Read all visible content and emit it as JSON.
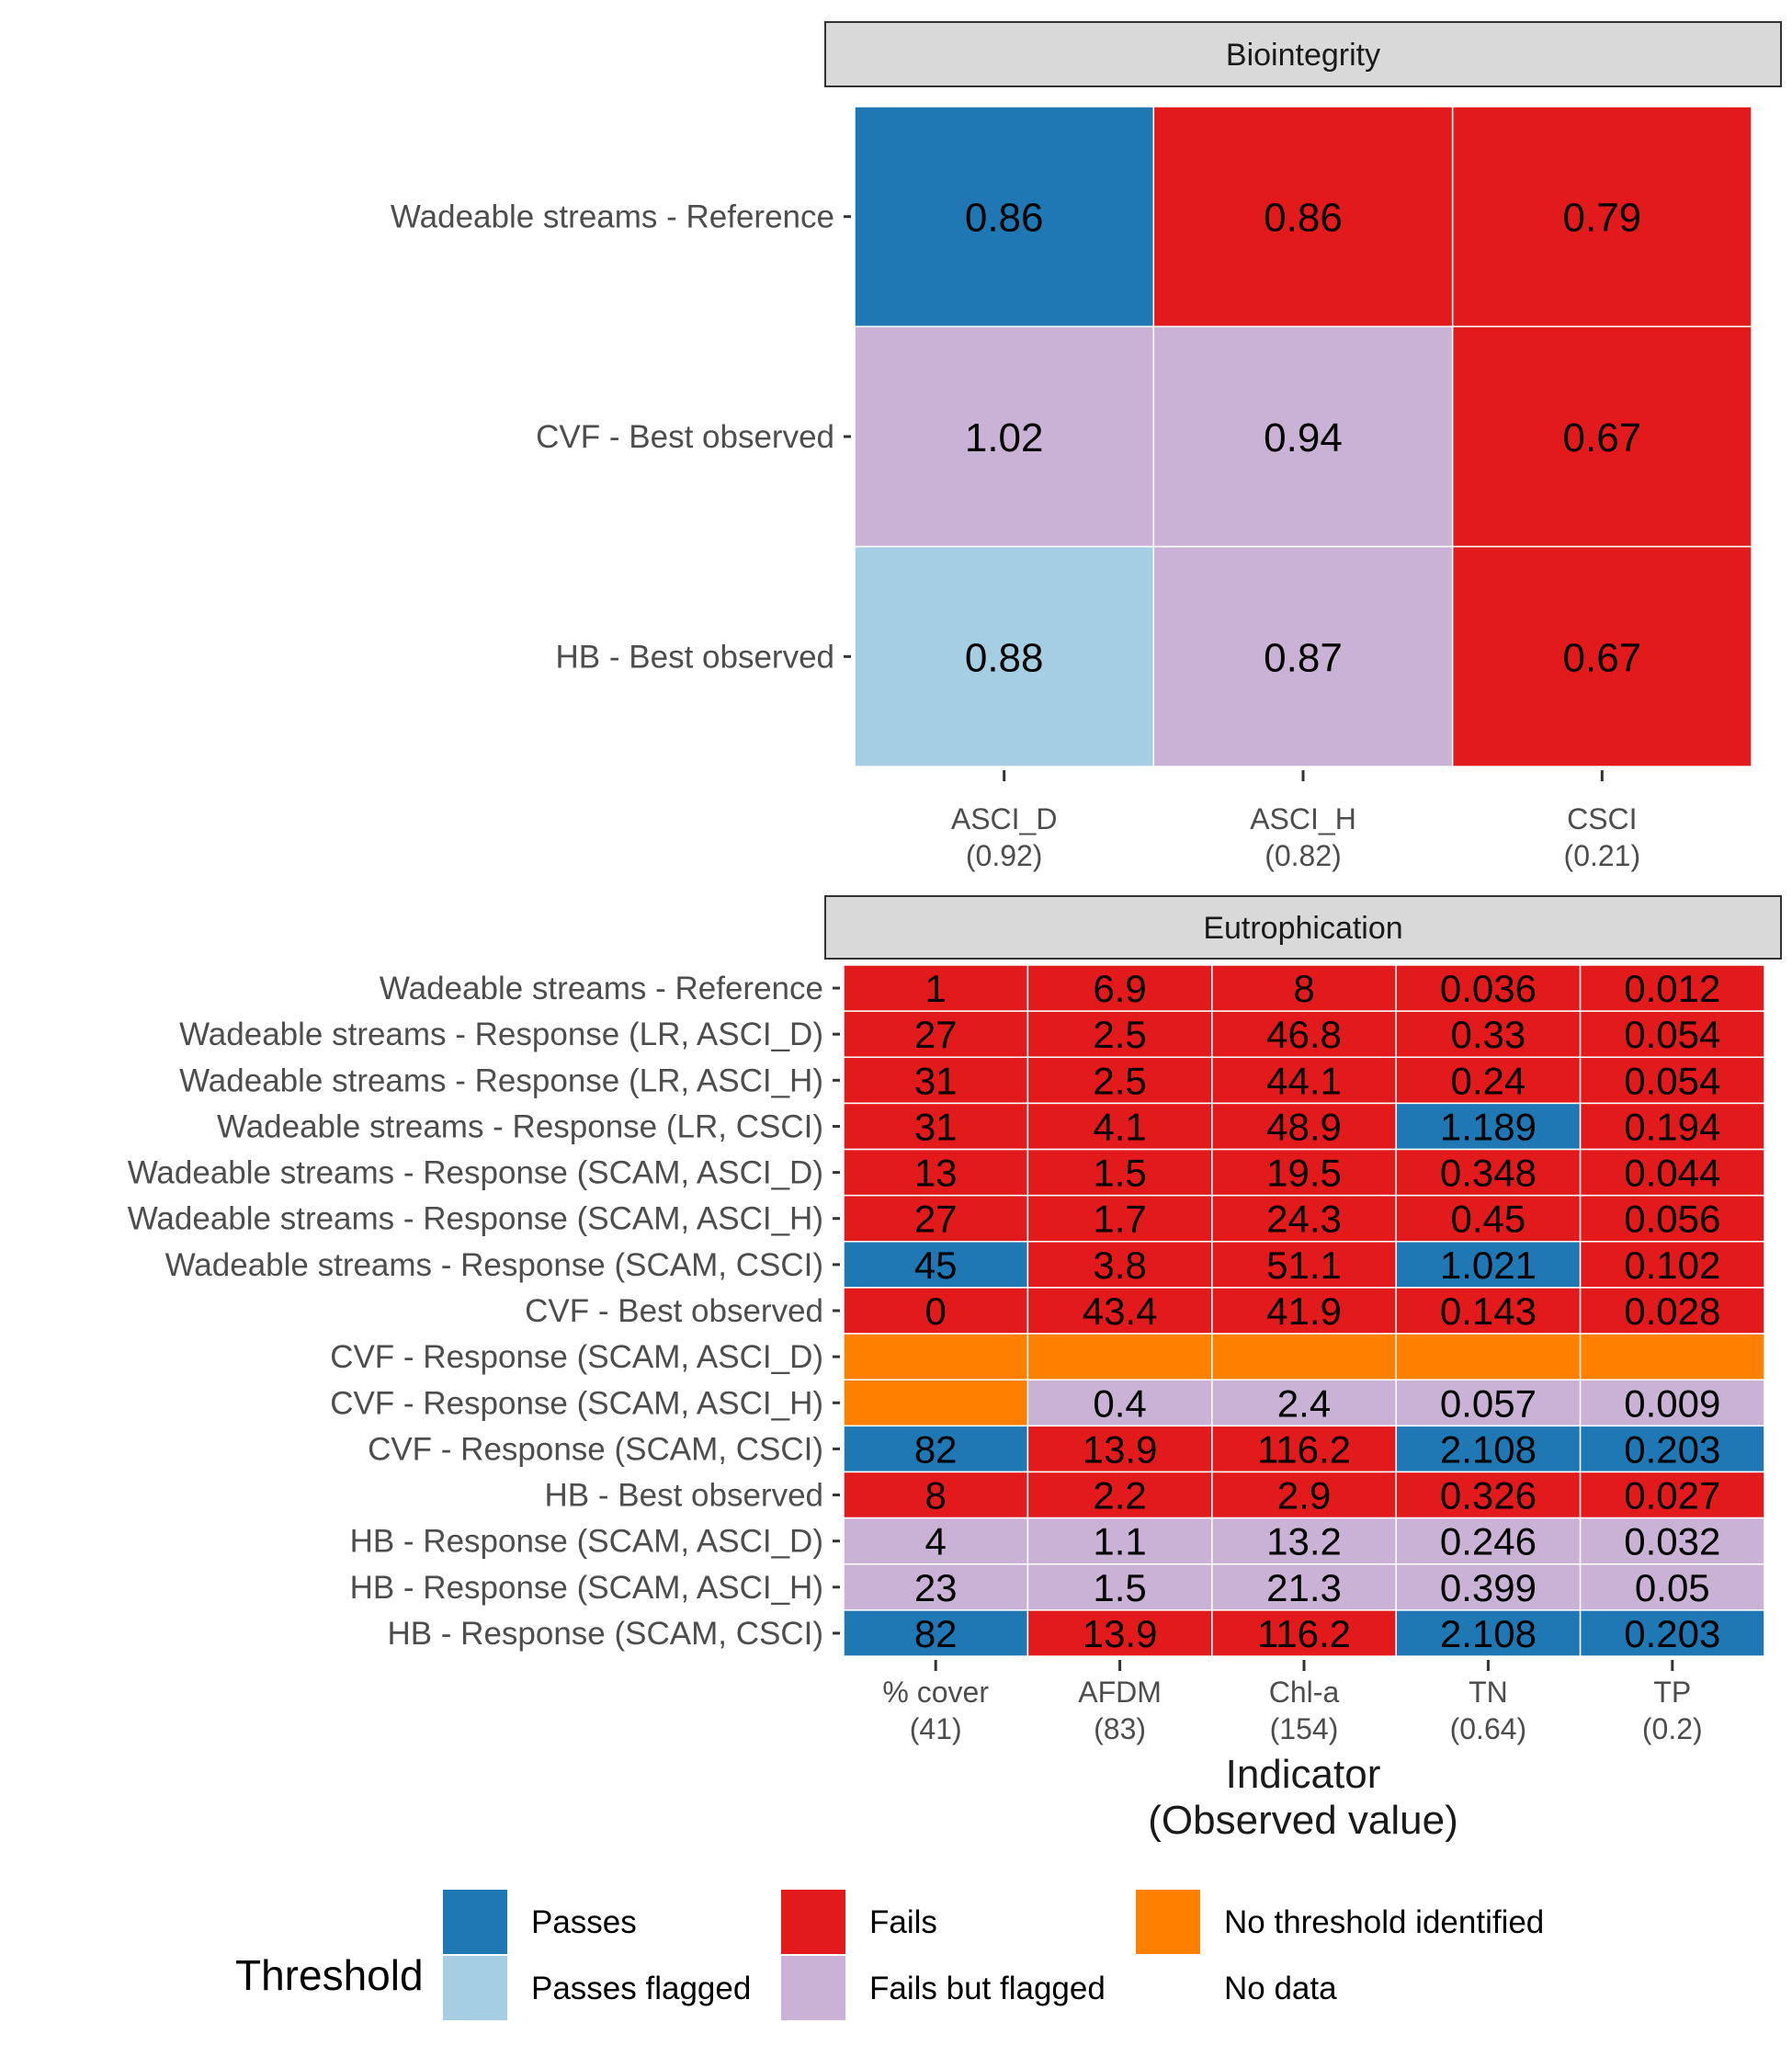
{
  "chart_data": {
    "type": "heatmap",
    "xlabel": [
      "Indicator",
      "(Observed value)"
    ],
    "legend": {
      "title": "Threshold",
      "position": "bottom",
      "items": [
        {
          "label": "Passes",
          "color": "#1F78B4"
        },
        {
          "label": "Passes flagged",
          "color": "#A6CEE3"
        },
        {
          "label": "Fails",
          "color": "#E31A1C"
        },
        {
          "label": "Fails but flagged",
          "color": "#CAB2D6"
        },
        {
          "label": "No threshold identified",
          "color": "#FF7F00"
        },
        {
          "label": "No data",
          "color": null
        }
      ]
    },
    "panels": [
      {
        "strip": "Biointegrity",
        "columns": [
          {
            "name": "ASCI_D",
            "observed": "(0.92)"
          },
          {
            "name": "ASCI_H",
            "observed": "(0.82)"
          },
          {
            "name": "CSCI",
            "observed": "(0.21)"
          }
        ],
        "rows": [
          {
            "label": "Wadeable streams - Reference",
            "cells": [
              {
                "value": "0.86",
                "status": "Passes"
              },
              {
                "value": "0.86",
                "status": "Fails"
              },
              {
                "value": "0.79",
                "status": "Fails"
              }
            ]
          },
          {
            "label": "CVF - Best observed",
            "cells": [
              {
                "value": "1.02",
                "status": "Fails but flagged"
              },
              {
                "value": "0.94",
                "status": "Fails but flagged"
              },
              {
                "value": "0.67",
                "status": "Fails"
              }
            ]
          },
          {
            "label": "HB - Best observed",
            "cells": [
              {
                "value": "0.88",
                "status": "Passes flagged"
              },
              {
                "value": "0.87",
                "status": "Fails but flagged"
              },
              {
                "value": "0.67",
                "status": "Fails"
              }
            ]
          }
        ]
      },
      {
        "strip": "Eutrophication",
        "columns": [
          {
            "name": "% cover",
            "observed": "(41)"
          },
          {
            "name": "AFDM",
            "observed": "(83)"
          },
          {
            "name": "Chl-a",
            "observed": "(154)"
          },
          {
            "name": "TN",
            "observed": "(0.64)"
          },
          {
            "name": "TP",
            "observed": "(0.2)"
          }
        ],
        "rows": [
          {
            "label": "Wadeable streams - Reference",
            "cells": [
              {
                "value": "1",
                "status": "Fails"
              },
              {
                "value": "6.9",
                "status": "Fails"
              },
              {
                "value": "8",
                "status": "Fails"
              },
              {
                "value": "0.036",
                "status": "Fails"
              },
              {
                "value": "0.012",
                "status": "Fails"
              }
            ]
          },
          {
            "label": "Wadeable streams - Response (LR, ASCI_D)",
            "cells": [
              {
                "value": "27",
                "status": "Fails"
              },
              {
                "value": "2.5",
                "status": "Fails"
              },
              {
                "value": "46.8",
                "status": "Fails"
              },
              {
                "value": "0.33",
                "status": "Fails"
              },
              {
                "value": "0.054",
                "status": "Fails"
              }
            ]
          },
          {
            "label": "Wadeable streams - Response (LR, ASCI_H)",
            "cells": [
              {
                "value": "31",
                "status": "Fails"
              },
              {
                "value": "2.5",
                "status": "Fails"
              },
              {
                "value": "44.1",
                "status": "Fails"
              },
              {
                "value": "0.24",
                "status": "Fails"
              },
              {
                "value": "0.054",
                "status": "Fails"
              }
            ]
          },
          {
            "label": "Wadeable streams - Response (LR, CSCI)",
            "cells": [
              {
                "value": "31",
                "status": "Fails"
              },
              {
                "value": "4.1",
                "status": "Fails"
              },
              {
                "value": "48.9",
                "status": "Fails"
              },
              {
                "value": "1.189",
                "status": "Passes"
              },
              {
                "value": "0.194",
                "status": "Fails"
              }
            ]
          },
          {
            "label": "Wadeable streams - Response (SCAM, ASCI_D)",
            "cells": [
              {
                "value": "13",
                "status": "Fails"
              },
              {
                "value": "1.5",
                "status": "Fails"
              },
              {
                "value": "19.5",
                "status": "Fails"
              },
              {
                "value": "0.348",
                "status": "Fails"
              },
              {
                "value": "0.044",
                "status": "Fails"
              }
            ]
          },
          {
            "label": "Wadeable streams - Response (SCAM, ASCI_H)",
            "cells": [
              {
                "value": "27",
                "status": "Fails"
              },
              {
                "value": "1.7",
                "status": "Fails"
              },
              {
                "value": "24.3",
                "status": "Fails"
              },
              {
                "value": "0.45",
                "status": "Fails"
              },
              {
                "value": "0.056",
                "status": "Fails"
              }
            ]
          },
          {
            "label": "Wadeable streams - Response (SCAM, CSCI)",
            "cells": [
              {
                "value": "45",
                "status": "Passes"
              },
              {
                "value": "3.8",
                "status": "Fails"
              },
              {
                "value": "51.1",
                "status": "Fails"
              },
              {
                "value": "1.021",
                "status": "Passes"
              },
              {
                "value": "0.102",
                "status": "Fails"
              }
            ]
          },
          {
            "label": "CVF - Best observed",
            "cells": [
              {
                "value": "0",
                "status": "Fails"
              },
              {
                "value": "43.4",
                "status": "Fails"
              },
              {
                "value": "41.9",
                "status": "Fails"
              },
              {
                "value": "0.143",
                "status": "Fails"
              },
              {
                "value": "0.028",
                "status": "Fails"
              }
            ]
          },
          {
            "label": "CVF - Response (SCAM, ASCI_D)",
            "cells": [
              {
                "value": "",
                "status": "No threshold identified"
              },
              {
                "value": "",
                "status": "No threshold identified"
              },
              {
                "value": "",
                "status": "No threshold identified"
              },
              {
                "value": "",
                "status": "No threshold identified"
              },
              {
                "value": "",
                "status": "No threshold identified"
              }
            ]
          },
          {
            "label": "CVF - Response (SCAM, ASCI_H)",
            "cells": [
              {
                "value": "",
                "status": "No threshold identified"
              },
              {
                "value": "0.4",
                "status": "Fails but flagged"
              },
              {
                "value": "2.4",
                "status": "Fails but flagged"
              },
              {
                "value": "0.057",
                "status": "Fails but flagged"
              },
              {
                "value": "0.009",
                "status": "Fails but flagged"
              }
            ]
          },
          {
            "label": "CVF - Response (SCAM, CSCI)",
            "cells": [
              {
                "value": "82",
                "status": "Passes"
              },
              {
                "value": "13.9",
                "status": "Fails"
              },
              {
                "value": "116.2",
                "status": "Fails"
              },
              {
                "value": "2.108",
                "status": "Passes"
              },
              {
                "value": "0.203",
                "status": "Passes"
              }
            ]
          },
          {
            "label": "HB - Best observed",
            "cells": [
              {
                "value": "8",
                "status": "Fails"
              },
              {
                "value": "2.2",
                "status": "Fails"
              },
              {
                "value": "2.9",
                "status": "Fails"
              },
              {
                "value": "0.326",
                "status": "Fails"
              },
              {
                "value": "0.027",
                "status": "Fails"
              }
            ]
          },
          {
            "label": "HB - Response (SCAM, ASCI_D)",
            "cells": [
              {
                "value": "4",
                "status": "Fails but flagged"
              },
              {
                "value": "1.1",
                "status": "Fails but flagged"
              },
              {
                "value": "13.2",
                "status": "Fails but flagged"
              },
              {
                "value": "0.246",
                "status": "Fails but flagged"
              },
              {
                "value": "0.032",
                "status": "Fails but flagged"
              }
            ]
          },
          {
            "label": "HB - Response (SCAM, ASCI_H)",
            "cells": [
              {
                "value": "23",
                "status": "Fails but flagged"
              },
              {
                "value": "1.5",
                "status": "Fails but flagged"
              },
              {
                "value": "21.3",
                "status": "Fails but flagged"
              },
              {
                "value": "0.399",
                "status": "Fails but flagged"
              },
              {
                "value": "0.05",
                "status": "Fails but flagged"
              }
            ]
          },
          {
            "label": "HB - Response (SCAM, CSCI)",
            "cells": [
              {
                "value": "82",
                "status": "Passes"
              },
              {
                "value": "13.9",
                "status": "Fails"
              },
              {
                "value": "116.2",
                "status": "Fails"
              },
              {
                "value": "2.108",
                "status": "Passes"
              },
              {
                "value": "0.203",
                "status": "Passes"
              }
            ]
          }
        ]
      }
    ]
  }
}
